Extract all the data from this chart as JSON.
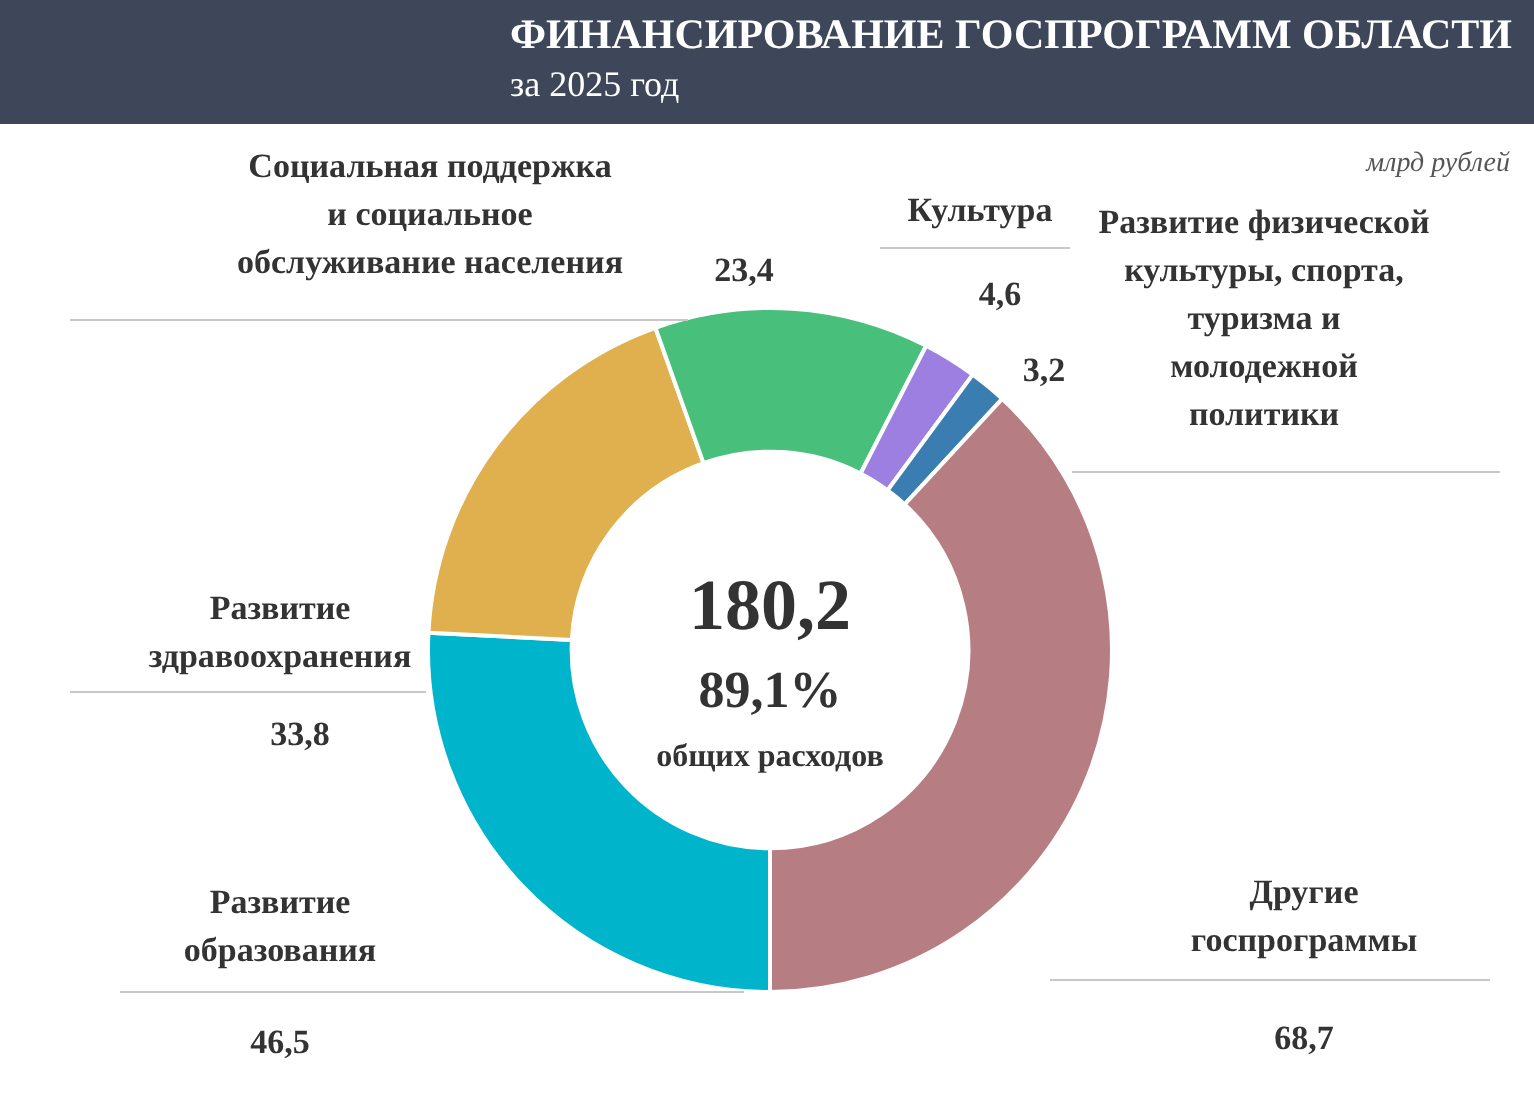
{
  "chart_data": {
    "type": "donut",
    "title": "ФИНАНСИРОВАНИЕ ГОСПРОГРАММ ОБЛАСТИ",
    "subtitle": "за 2025 год",
    "categories": [
      "Развитие образования",
      "Развитие здравоохранения",
      "Социальная поддержка и социальное обслуживание населения",
      "Культура",
      "Развитие физической культуры, спорта, туризма и молодежной политики",
      "Другие госпрограммы"
    ],
    "values": [
      46.5,
      33.8,
      23.4,
      4.6,
      3.2,
      68.7
    ],
    "value_labels": [
      "46,5",
      "33,8",
      "23,4",
      "4,6",
      "3,2",
      "68,7"
    ],
    "colors": [
      "#00b4cc",
      "#e0b04f",
      "#48bf7a",
      "#9c7fe0",
      "#3a7db0",
      "#b67e82"
    ],
    "annotations": [
      "180,2",
      "89,1%",
      "общих расходов",
      "млрд рублей"
    ],
    "legend": false
  }
}
